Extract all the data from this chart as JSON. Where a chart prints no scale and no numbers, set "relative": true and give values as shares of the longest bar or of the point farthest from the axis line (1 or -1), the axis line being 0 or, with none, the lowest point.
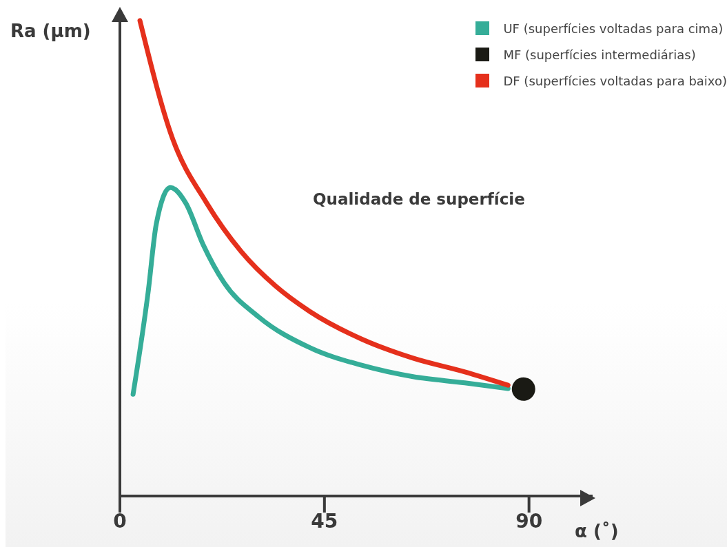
{
  "chart_data": {
    "type": "line",
    "ylabel": "Ra (µm)",
    "xlabel": "α (˚)",
    "relative": true,
    "xlim": [
      0,
      104
    ],
    "xticks": [
      0,
      45,
      90
    ],
    "legend": "top right",
    "grid": false,
    "line_style": "solid",
    "annotations": [
      "Qualidade de superfície"
    ],
    "series": [
      {
        "name": "UF (superfícies voltadas para cima)",
        "color": "#35ad98",
        "x": [
          2.9,
          6.2,
          8.0,
          11.1,
          14.5,
          18.3,
          22.9,
          30.5,
          41.8,
          53.2,
          64.5,
          75.9,
          85.4
        ],
        "values": [
          0.214,
          0.428,
          0.572,
          0.649,
          0.616,
          0.529,
          0.449,
          0.377,
          0.312,
          0.275,
          0.251,
          0.238,
          0.226
        ]
      },
      {
        "name": "MF (superfícies intermediárias)",
        "type": "scatter",
        "marker": "circle",
        "color": "#1a1a14",
        "x": [
          88.8
        ],
        "values": [
          0.225
        ]
      },
      {
        "name": "DF (superfícies voltadas para baixo)",
        "color": "#e5301c",
        "x": [
          4.4,
          11.5,
          19.1,
          26.7,
          34.2,
          41.8,
          53.2,
          64.5,
          75.9,
          85.4
        ],
        "values": [
          1.0,
          0.754,
          0.616,
          0.514,
          0.442,
          0.388,
          0.33,
          0.29,
          0.261,
          0.233
        ]
      }
    ]
  }
}
